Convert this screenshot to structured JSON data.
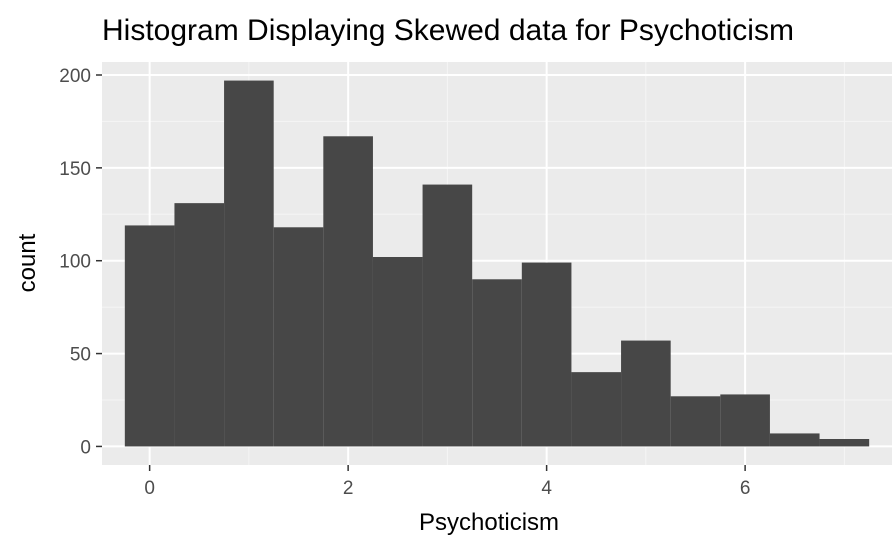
{
  "chart_data": {
    "type": "bar",
    "title": "Histogram Displaying Skewed data for Psychoticism",
    "xlabel": "Psychoticism",
    "ylabel": "count",
    "bin_width": 0.5,
    "bins": [
      {
        "x": 0.0,
        "count": 119
      },
      {
        "x": 0.5,
        "count": 131
      },
      {
        "x": 1.0,
        "count": 197
      },
      {
        "x": 1.5,
        "count": 118
      },
      {
        "x": 2.0,
        "count": 167
      },
      {
        "x": 2.5,
        "count": 102
      },
      {
        "x": 3.0,
        "count": 141
      },
      {
        "x": 3.5,
        "count": 90
      },
      {
        "x": 4.0,
        "count": 99
      },
      {
        "x": 4.5,
        "count": 40
      },
      {
        "x": 5.0,
        "count": 57
      },
      {
        "x": 5.5,
        "count": 27
      },
      {
        "x": 6.0,
        "count": 28
      },
      {
        "x": 6.5,
        "count": 7
      },
      {
        "x": 7.0,
        "count": 4
      }
    ],
    "xlim": [
      -0.48,
      7.48
    ],
    "ylim": [
      -10,
      207
    ],
    "x_ticks": [
      0,
      2,
      4,
      6
    ],
    "x_tick_labels": [
      "0",
      "2",
      "4",
      "6"
    ],
    "y_ticks": [
      0,
      50,
      100,
      150,
      200
    ],
    "y_tick_labels": [
      "0",
      "50",
      "100",
      "150",
      "200"
    ],
    "grid": true,
    "legend": "none",
    "colors": {
      "bar": "#474747",
      "panel": "#ebebeb",
      "grid_major": "#ffffff",
      "grid_minor": "#f5f5f5",
      "tick": "#4d4d4d"
    }
  }
}
